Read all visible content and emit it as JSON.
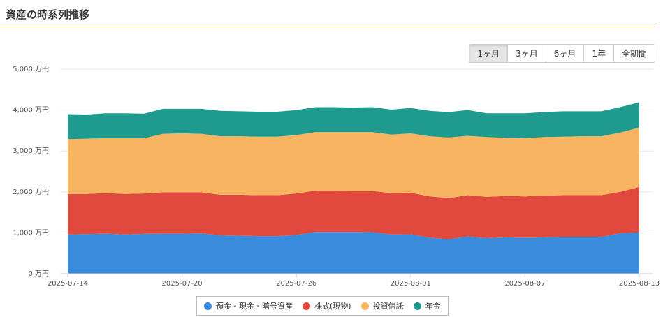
{
  "header": {
    "title": "資産の時系列推移"
  },
  "controls": {
    "ranges": [
      "1ヶ月",
      "3ヶ月",
      "6ヶ月",
      "1年",
      "全期間"
    ],
    "selected_index": 0
  },
  "chart_data": {
    "type": "stacked-area",
    "x": [
      "2025-07-14",
      "2025-07-15",
      "2025-07-16",
      "2025-07-17",
      "2025-07-18",
      "2025-07-19",
      "2025-07-20",
      "2025-07-21",
      "2025-07-22",
      "2025-07-23",
      "2025-07-24",
      "2025-07-25",
      "2025-07-26",
      "2025-07-27",
      "2025-07-28",
      "2025-07-29",
      "2025-07-30",
      "2025-07-31",
      "2025-08-01",
      "2025-08-02",
      "2025-08-03",
      "2025-08-04",
      "2025-08-05",
      "2025-08-06",
      "2025-08-07",
      "2025-08-08",
      "2025-08-09",
      "2025-08-10",
      "2025-08-11",
      "2025-08-12",
      "2025-08-13"
    ],
    "xticks": [
      "2025-07-14",
      "2025-07-20",
      "2025-07-26",
      "2025-08-01",
      "2025-08-07",
      "2025-08-13"
    ],
    "ylim": [
      0,
      5000
    ],
    "yticks": [
      {
        "value": 0,
        "label": "0 万円"
      },
      {
        "value": 1000,
        "label": "1,000 万円"
      },
      {
        "value": 2000,
        "label": "2,000 万円"
      },
      {
        "value": 3000,
        "label": "3,000 万円"
      },
      {
        "value": 4000,
        "label": "4,000 万円"
      },
      {
        "value": 5000,
        "label": "5,000 万円"
      }
    ],
    "grid": true,
    "series": [
      {
        "name": "預金・現金・暗号資産",
        "color": "#3b8bdc",
        "values": [
          960,
          970,
          980,
          960,
          975,
          980,
          980,
          985,
          940,
          930,
          920,
          920,
          950,
          1020,
          1020,
          1020,
          1015,
          960,
          965,
          880,
          840,
          910,
          870,
          890,
          880,
          890,
          900,
          900,
          900,
          990,
          1010
        ]
      },
      {
        "name": "株式(現物)",
        "color": "#e04a3c",
        "values": [
          990,
          980,
          990,
          990,
          985,
          1010,
          1010,
          1005,
          990,
          1000,
          1000,
          1000,
          1010,
          1010,
          1010,
          1000,
          1005,
          1010,
          1015,
          1010,
          1010,
          1010,
          1010,
          1010,
          1010,
          1020,
          1020,
          1020,
          1020,
          1010,
          1110
        ]
      },
      {
        "name": "投資信託",
        "color": "#f9b462",
        "values": [
          1340,
          1350,
          1340,
          1360,
          1350,
          1430,
          1440,
          1430,
          1430,
          1430,
          1430,
          1430,
          1430,
          1430,
          1430,
          1440,
          1440,
          1430,
          1450,
          1470,
          1480,
          1450,
          1460,
          1420,
          1420,
          1430,
          1430,
          1440,
          1440,
          1450,
          1450
        ]
      },
      {
        "name": "年金",
        "color": "#1f9a8e",
        "values": [
          610,
          590,
          610,
          610,
          600,
          610,
          600,
          610,
          620,
          610,
          610,
          610,
          610,
          610,
          610,
          600,
          610,
          610,
          620,
          620,
          620,
          630,
          580,
          600,
          610,
          610,
          620,
          610,
          610,
          620,
          620
        ]
      }
    ]
  }
}
